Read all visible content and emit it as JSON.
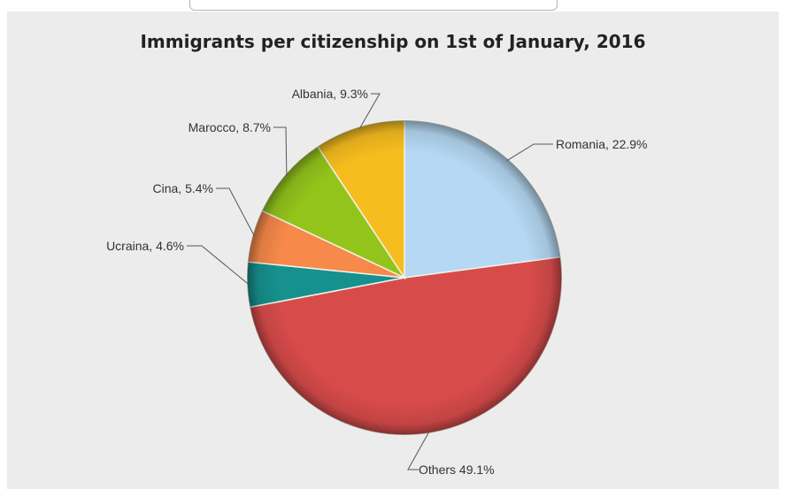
{
  "chart_data": {
    "type": "pie",
    "title": "Immigrants per citizenship on 1st of January, 2016",
    "slices": [
      {
        "name": "Romania",
        "value": 22.9,
        "label": "Romania, 22.9%",
        "color": "#b5d8f3"
      },
      {
        "name": "Others",
        "value": 49.1,
        "label": "Others 49.1%",
        "color": "#d84b4b"
      },
      {
        "name": "Ucraina",
        "value": 4.6,
        "label": "Ucraina, 4.6%",
        "color": "#16918d"
      },
      {
        "name": "Cina",
        "value": 5.4,
        "label": "Cina, 5.4%",
        "color": "#f7894a"
      },
      {
        "name": "Marocco",
        "value": 8.7,
        "label": "Marocco, 8.7%",
        "color": "#93c41b"
      },
      {
        "name": "Albania",
        "value": 9.3,
        "label": "Albania, 9.3%",
        "color": "#f6bd1f"
      }
    ],
    "legend": "none"
  }
}
